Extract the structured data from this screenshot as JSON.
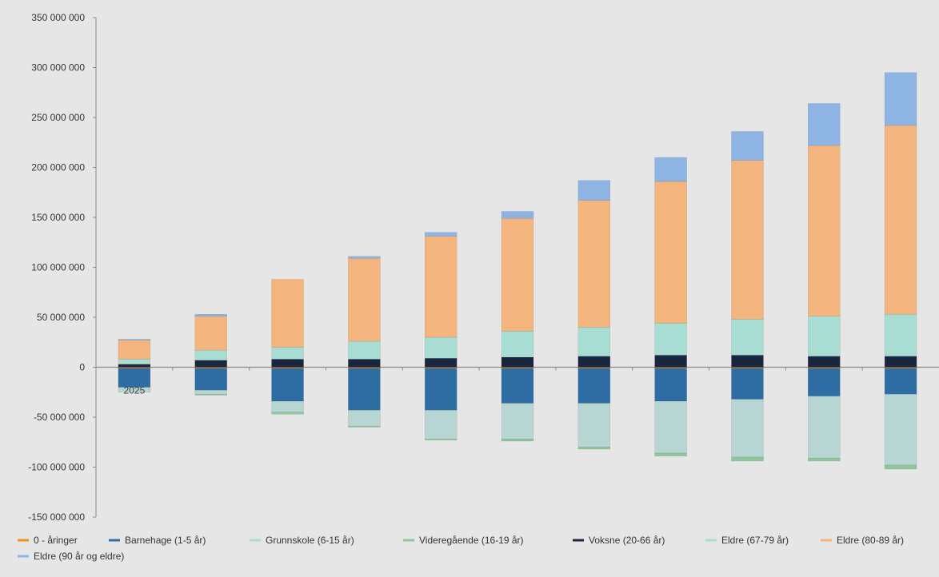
{
  "chart_data": {
    "type": "bar",
    "stacked": true,
    "title": "",
    "xlabel": "",
    "ylabel": "",
    "ylim": [
      -150000000,
      350000000
    ],
    "yticks": [
      350000000,
      300000000,
      250000000,
      200000000,
      150000000,
      100000000,
      50000000,
      0,
      -50000000,
      -100000000,
      -150000000
    ],
    "ytick_labels": [
      "350 000 000",
      "300 000 000",
      "250 000 000",
      "200 000 000",
      "150 000 000",
      "100 000 000",
      "50 000 000",
      "0",
      "-50 000 000",
      "-100 000 000",
      "-150 000 000"
    ],
    "categories": [
      "2025",
      "",
      "",
      "",
      "",
      "",
      "",
      "",
      "",
      "",
      ""
    ],
    "grid": false,
    "legend_position": "bottom",
    "series": [
      {
        "name": "0 - åringer",
        "color": "#f28e1c",
        "values": [
          -1000000,
          -1000000,
          -1000000,
          -1000000,
          -1000000,
          -1000000,
          -1000000,
          -1000000,
          -1000000,
          -1000000,
          -1000000
        ]
      },
      {
        "name": "Barnehage (1-5 år)",
        "color": "#2e6da4",
        "values": [
          -19000000,
          -22000000,
          -33000000,
          -42000000,
          -42000000,
          -35000000,
          -35000000,
          -33000000,
          -31000000,
          -28000000,
          -26000000
        ]
      },
      {
        "name": "Grunnskole (6-15 år)",
        "color": "#b7d5d2",
        "values": [
          -5000000,
          -4000000,
          -11000000,
          -16000000,
          -29000000,
          -36000000,
          -44000000,
          -52000000,
          -58000000,
          -62000000,
          -71000000
        ]
      },
      {
        "name": "Videregående (16-19 år)",
        "color": "#8fc79a",
        "values": [
          0,
          -1000000,
          -2000000,
          -1000000,
          -1000000,
          -2000000,
          -2000000,
          -3000000,
          -4000000,
          -3000000,
          -4000000
        ]
      },
      {
        "name": "Voksne (20-66 år)",
        "color": "#1a2540",
        "values": [
          3000000,
          7000000,
          8000000,
          8000000,
          9000000,
          10000000,
          11000000,
          12000000,
          12000000,
          11000000,
          11000000
        ]
      },
      {
        "name": "Eldre (67-79 år)",
        "color": "#a8ddd4",
        "values": [
          5000000,
          10000000,
          12000000,
          18000000,
          21000000,
          26000000,
          29000000,
          32000000,
          36000000,
          40000000,
          42000000
        ]
      },
      {
        "name": "Eldre (80-89 år)",
        "color": "#f4b47d",
        "values": [
          19000000,
          34000000,
          68000000,
          83000000,
          101000000,
          113000000,
          127000000,
          142000000,
          159000000,
          171000000,
          189000000
        ]
      },
      {
        "name": "Eldre (90 år og eldre)",
        "color": "#8eb4e3",
        "values": [
          1000000,
          2000000,
          0,
          2000000,
          4000000,
          7000000,
          20000000,
          24000000,
          29000000,
          42000000,
          53000000
        ]
      }
    ]
  }
}
